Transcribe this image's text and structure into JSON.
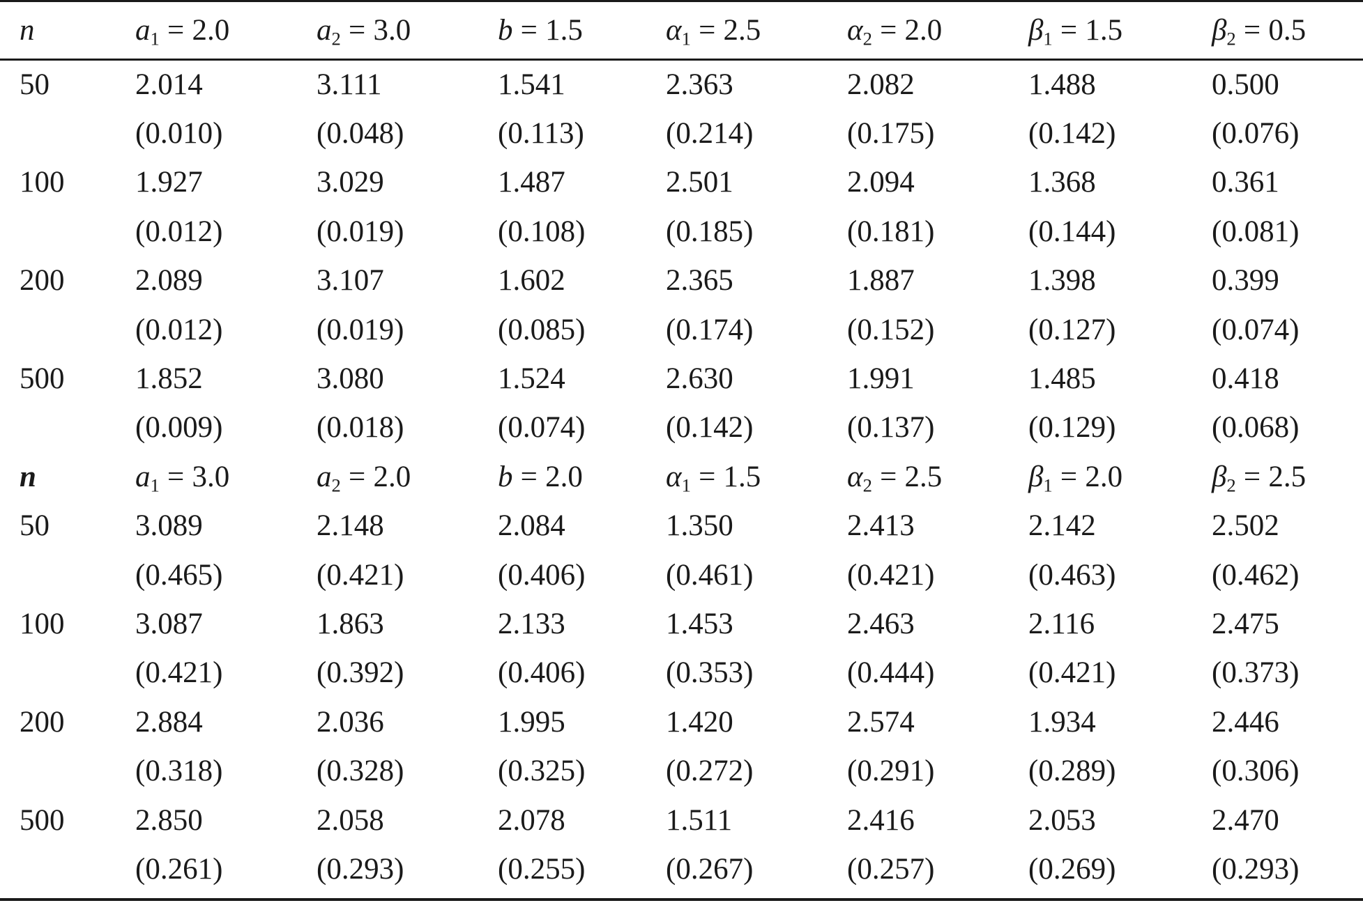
{
  "column_widths": [],
  "header_1": {
    "n": "n",
    "params": [
      {
        "sym": "a",
        "sub": "1",
        "val": "2.0"
      },
      {
        "sym": "a",
        "sub": "2",
        "val": "3.0"
      },
      {
        "sym": "b",
        "sub": "",
        "val": "1.5"
      },
      {
        "sym": "α",
        "sub": "1",
        "val": "2.5"
      },
      {
        "sym": "α",
        "sub": "2",
        "val": "2.0"
      },
      {
        "sym": "β",
        "sub": "1",
        "val": "1.5"
      },
      {
        "sym": "β",
        "sub": "2",
        "val": "0.5"
      }
    ]
  },
  "block_1": [
    {
      "n": "50",
      "est": [
        "2.014",
        "3.111",
        "1.541",
        "2.363",
        "2.082",
        "1.488",
        "0.500"
      ],
      "se": [
        "(0.010)",
        "(0.048)",
        "(0.113)",
        "(0.214)",
        "(0.175)",
        "(0.142)",
        "(0.076)"
      ]
    },
    {
      "n": "100",
      "est": [
        "1.927",
        "3.029",
        "1.487",
        "2.501",
        "2.094",
        "1.368",
        "0.361"
      ],
      "se": [
        "(0.012)",
        "(0.019)",
        "(0.108)",
        "(0.185)",
        "(0.181)",
        "(0.144)",
        "(0.081)"
      ]
    },
    {
      "n": "200",
      "est": [
        "2.089",
        "3.107",
        "1.602",
        "2.365",
        "1.887",
        "1.398",
        "0.399"
      ],
      "se": [
        "(0.012)",
        "(0.019)",
        "(0.085)",
        "(0.174)",
        "(0.152)",
        "(0.127)",
        "(0.074)"
      ]
    },
    {
      "n": "500",
      "est": [
        "1.852",
        "3.080",
        "1.524",
        "2.630",
        "1.991",
        "1.485",
        "0.418"
      ],
      "se": [
        "(0.009)",
        "(0.018)",
        "(0.074)",
        "(0.142)",
        "(0.137)",
        "(0.129)",
        "(0.068)"
      ]
    }
  ],
  "header_2": {
    "n": "n",
    "params": [
      {
        "sym": "a",
        "sub": "1",
        "val": "3.0"
      },
      {
        "sym": "a",
        "sub": "2",
        "val": "2.0"
      },
      {
        "sym": "b",
        "sub": "",
        "val": "2.0"
      },
      {
        "sym": "α",
        "sub": "1",
        "val": "1.5"
      },
      {
        "sym": "α",
        "sub": "2",
        "val": "2.5"
      },
      {
        "sym": "β",
        "sub": "1",
        "val": "2.0"
      },
      {
        "sym": "β",
        "sub": "2",
        "val": "2.5"
      }
    ]
  },
  "block_2": [
    {
      "n": "50",
      "est": [
        "3.089",
        "2.148",
        "2.084",
        "1.350",
        "2.413",
        "2.142",
        "2.502"
      ],
      "se": [
        "(0.465)",
        "(0.421)",
        "(0.406)",
        "(0.461)",
        "(0.421)",
        "(0.463)",
        "(0.462)"
      ]
    },
    {
      "n": "100",
      "est": [
        "3.087",
        "1.863",
        "2.133",
        "1.453",
        "2.463",
        "2.116",
        "2.475"
      ],
      "se": [
        "(0.421)",
        "(0.392)",
        "(0.406)",
        "(0.353)",
        "(0.444)",
        "(0.421)",
        "(0.373)"
      ]
    },
    {
      "n": "200",
      "est": [
        "2.884",
        "2.036",
        "1.995",
        "1.420",
        "2.574",
        "1.934",
        "2.446"
      ],
      "se": [
        "(0.318)",
        "(0.328)",
        "(0.325)",
        "(0.272)",
        "(0.291)",
        "(0.289)",
        "(0.306)"
      ]
    },
    {
      "n": "500",
      "est": [
        "2.850",
        "2.058",
        "2.078",
        "1.511",
        "2.416",
        "2.053",
        "2.470"
      ],
      "se": [
        "(0.261)",
        "(0.293)",
        "(0.255)",
        "(0.267)",
        "(0.257)",
        "(0.269)",
        "(0.293)"
      ]
    }
  ]
}
